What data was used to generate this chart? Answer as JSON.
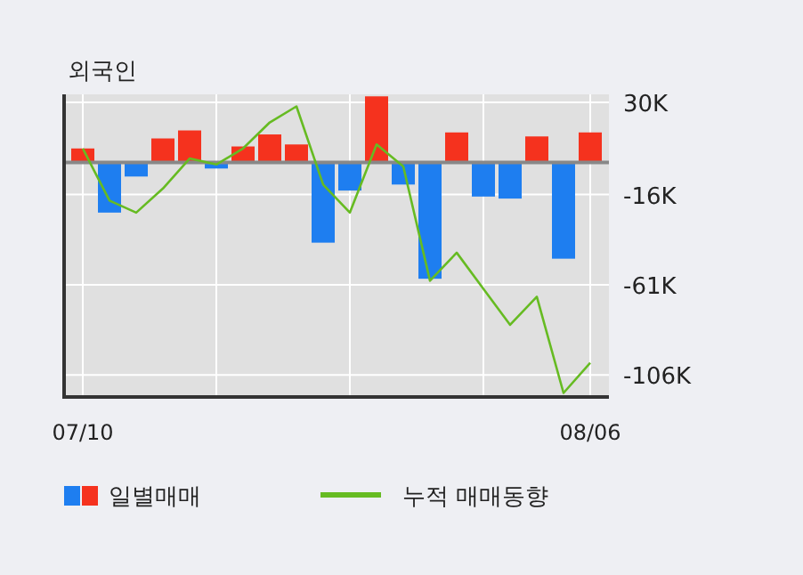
{
  "chart_data": {
    "type": "bar",
    "title": "외국인",
    "categories": [
      "07/10",
      null,
      null,
      null,
      null,
      null,
      null,
      null,
      null,
      null,
      null,
      null,
      null,
      null,
      null,
      null,
      null,
      null,
      null,
      "08/06"
    ],
    "series": [
      {
        "name": "일별매매",
        "values": [
          7,
          -25,
          -7,
          12,
          16,
          -3,
          8,
          14,
          9,
          -40,
          -14,
          33,
          -11,
          -58,
          15,
          -17,
          -18,
          13,
          -48,
          15
        ],
        "colors": [
          "#f5321e",
          "#1e7ef0",
          "#1e7ef0",
          "#f5321e",
          "#f5321e",
          "#1e7ef0",
          "#f5321e",
          "#f5321e",
          "#f5321e",
          "#1e7ef0",
          "#1e7ef0",
          "#f5321e",
          "#1e7ef0",
          "#1e7ef0",
          "#f5321e",
          "#1e7ef0",
          "#1e7ef0",
          "#f5321e",
          "#1e7ef0",
          "#f5321e"
        ]
      },
      {
        "name": "누적 매매동향",
        "type": "line",
        "color": "#66bb22",
        "values": [
          7,
          -19,
          -25,
          -13,
          2,
          -1,
          7,
          20,
          28,
          -11,
          -25,
          9,
          -2,
          -59,
          -45,
          -63,
          -81,
          -67,
          -115,
          -100
        ]
      }
    ],
    "ylim": [
      -117,
      34
    ],
    "yticks": [
      {
        "value": 30,
        "label": "30K"
      },
      {
        "value": -16,
        "label": "-16K"
      },
      {
        "value": -61,
        "label": "-61K"
      },
      {
        "value": -106,
        "label": "-106K"
      }
    ],
    "grid": true,
    "legend": "bottom"
  }
}
